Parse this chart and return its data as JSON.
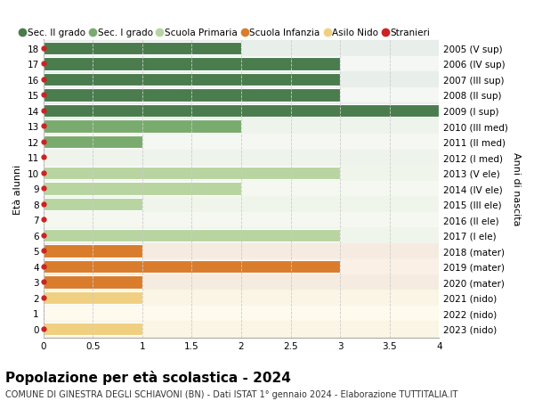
{
  "ages": [
    18,
    17,
    16,
    15,
    14,
    13,
    12,
    11,
    10,
    9,
    8,
    7,
    6,
    5,
    4,
    3,
    2,
    1,
    0
  ],
  "right_labels": [
    "2005 (V sup)",
    "2006 (IV sup)",
    "2007 (III sup)",
    "2008 (II sup)",
    "2009 (I sup)",
    "2010 (III med)",
    "2011 (II med)",
    "2012 (I med)",
    "2013 (V ele)",
    "2014 (IV ele)",
    "2015 (III ele)",
    "2016 (II ele)",
    "2017 (I ele)",
    "2018 (mater)",
    "2019 (mater)",
    "2020 (mater)",
    "2021 (nido)",
    "2022 (nido)",
    "2023 (nido)"
  ],
  "bar_values": [
    2,
    3,
    3,
    3,
    4,
    2,
    1,
    0,
    3,
    2,
    1,
    0,
    3,
    1,
    3,
    1,
    1,
    0,
    1
  ],
  "bar_colors": [
    "#4a7c4e",
    "#4a7c4e",
    "#4a7c4e",
    "#4a7c4e",
    "#4a7c4e",
    "#7aab6e",
    "#7aab6e",
    "#7aab6e",
    "#b8d4a0",
    "#b8d4a0",
    "#b8d4a0",
    "#b8d4a0",
    "#b8d4a0",
    "#d97c2c",
    "#d97c2c",
    "#d97c2c",
    "#f0d080",
    "#f0d080",
    "#f0d080"
  ],
  "row_bg_colors": [
    "#e8eeea",
    "#f4f7f4",
    "#e8eeea",
    "#f4f7f4",
    "#e8eeea",
    "#eef4eb",
    "#f4f7f2",
    "#eef4eb",
    "#f0f5eb",
    "#f5f8f1",
    "#f0f5eb",
    "#f5f8f1",
    "#f0f5eb",
    "#f5ebe0",
    "#faf0e6",
    "#f5ebe0",
    "#faf5e4",
    "#fffaee",
    "#faf5e4"
  ],
  "stranieri_marker": [
    true,
    true,
    true,
    true,
    true,
    true,
    true,
    true,
    true,
    true,
    true,
    true,
    true,
    true,
    true,
    true,
    true,
    false,
    true
  ],
  "legend_labels": [
    "Sec. II grado",
    "Sec. I grado",
    "Scuola Primaria",
    "Scuola Infanzia",
    "Asilo Nido",
    "Stranieri"
  ],
  "legend_colors": [
    "#4a7c4e",
    "#7aab6e",
    "#b8d4a0",
    "#d97c2c",
    "#f0d080",
    "#cc2222"
  ],
  "ylabel": "Età alunni",
  "right_ylabel": "Anni di nascita",
  "title": "Popolazione per età scolastica - 2024",
  "subtitle": "COMUNE DI GINESTRA DEGLI SCHIAVONI (BN) - Dati ISTAT 1° gennaio 2024 - Elaborazione TUTTITALIA.IT",
  "xlim": [
    0,
    4.0
  ],
  "xticks": [
    0,
    0.5,
    1.0,
    1.5,
    2.0,
    2.5,
    3.0,
    3.5,
    4.0
  ],
  "bar_height": 0.82,
  "bg_color": "#ffffff",
  "grid_color": "#cccccc",
  "stranieri_color": "#cc2222",
  "title_fontsize": 11,
  "subtitle_fontsize": 7,
  "axis_label_fontsize": 8,
  "tick_fontsize": 7.5,
  "legend_fontsize": 7.5
}
